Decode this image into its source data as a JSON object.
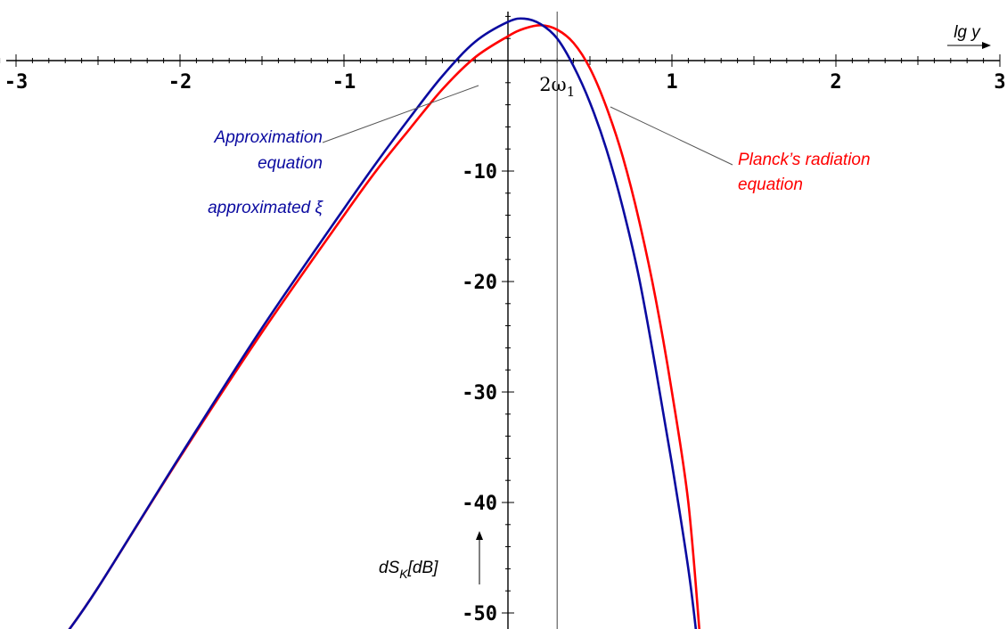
{
  "chart_data": {
    "type": "line",
    "xlabel": "lg y",
    "ylabel": "dS",
    "ylabel_sub": "K",
    "ylabel_unit": "[dB]",
    "xlim": [
      -3.15,
      3.05
    ],
    "ylim": [
      -52.6,
      4.3
    ],
    "x_ticks": [
      -3,
      -2,
      -1,
      1,
      2,
      3
    ],
    "x_tick_labels": [
      "-3",
      "-2",
      "-1",
      "1",
      "2",
      "3"
    ],
    "y_ticks": [
      -10,
      -20,
      -30,
      -40,
      -50
    ],
    "y_tick_labels": [
      "-10",
      "-20",
      "-30",
      "-40",
      "-50"
    ],
    "marker": {
      "x": 0.3,
      "label": "2ω",
      "label_sub": "1"
    },
    "grid": false,
    "series": [
      {
        "name": "Approximation equation",
        "color": "#0a0aa0",
        "x": [
          -2.7,
          -2.5,
          -2.0,
          -1.5,
          -1.0,
          -0.8,
          -0.6,
          -0.4,
          -0.2,
          0.0,
          0.1,
          0.2,
          0.3,
          0.4,
          0.5,
          0.6,
          0.7,
          0.8,
          0.9,
          1.0,
          1.1,
          1.15
        ],
        "y": [
          -52.0,
          -47.7,
          -35.8,
          -24.2,
          -13.4,
          -9.2,
          -5.2,
          -1.4,
          1.7,
          3.5,
          3.8,
          3.3,
          2.0,
          -0.5,
          -3.8,
          -8.0,
          -13.3,
          -19.7,
          -27.8,
          -36.5,
          -46.0,
          -52.0
        ]
      },
      {
        "name": "Planck's radiation equation",
        "color": "#ff0000",
        "x": [
          -2.7,
          -2.5,
          -2.0,
          -1.5,
          -1.0,
          -0.8,
          -0.6,
          -0.4,
          -0.2,
          0.0,
          0.1,
          0.2,
          0.3,
          0.4,
          0.5,
          0.6,
          0.7,
          0.8,
          0.9,
          1.0,
          1.1,
          1.17
        ],
        "y": [
          -52.0,
          -47.7,
          -35.9,
          -24.6,
          -14.0,
          -9.9,
          -6.2,
          -2.6,
          0.3,
          2.2,
          2.9,
          3.2,
          2.8,
          1.6,
          -0.7,
          -4.2,
          -8.7,
          -14.5,
          -21.5,
          -30.0,
          -40.0,
          -52.0
        ]
      }
    ],
    "annotations": {
      "blue_label_lines": [
        "Approximation",
        "equation"
      ],
      "blue_secondary": "approximated ξ",
      "red_label_lines": [
        "Planck’s radiation",
        "equation"
      ]
    }
  }
}
